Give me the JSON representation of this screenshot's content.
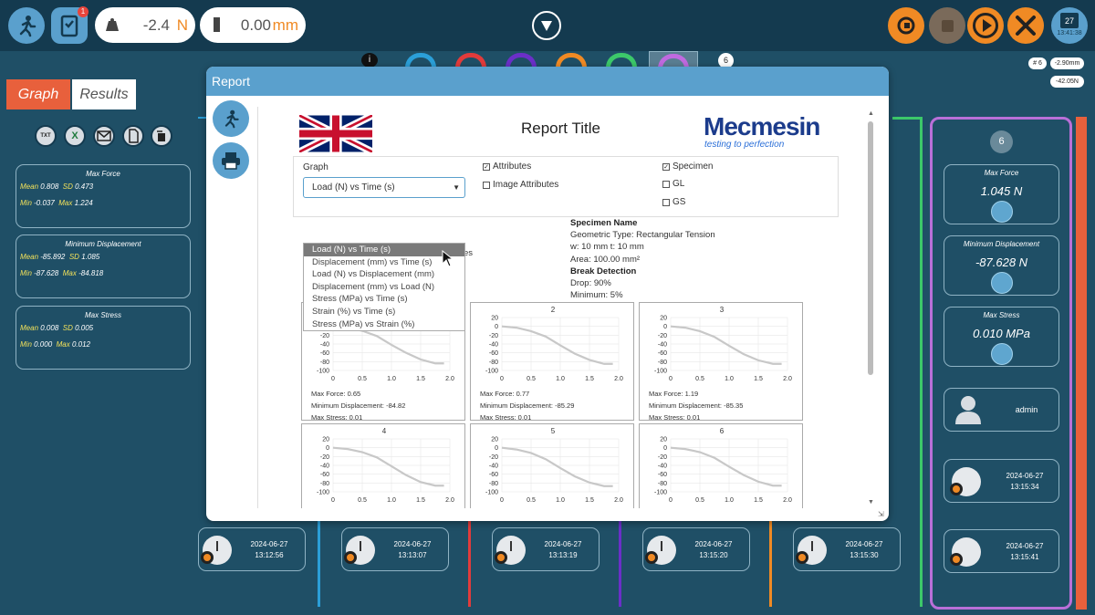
{
  "topbar": {
    "load_value": "-2.4",
    "load_unit": "N",
    "disp_value": "0.00",
    "disp_unit": "mm",
    "badge_count": "1",
    "date_day": "27",
    "time": "13:41:38"
  },
  "info_strip": {
    "sample_count": "6",
    "hash": "# 6",
    "disp": "-2.90mm",
    "force": "-42.05N"
  },
  "tabs": [
    {
      "label": "Graph"
    },
    {
      "label": "Results"
    }
  ],
  "stats": [
    {
      "title": "Max Force",
      "mean": "0.808",
      "sd": "0.473",
      "min": "-0.037",
      "max": "1.224"
    },
    {
      "title": "Minimum Displacement",
      "mean": "-85.892",
      "sd": "1.085",
      "min": "-87.628",
      "max": "-84.818"
    },
    {
      "title": "Max Stress",
      "mean": "0.008",
      "sd": "0.005",
      "min": "0.000",
      "max": "0.012"
    }
  ],
  "stat_keys": {
    "mean": "Mean",
    "sd": "SD",
    "min": "Min",
    "max": "Max"
  },
  "history": [
    {
      "date": "2024-06-27",
      "time": "13:12:56"
    },
    {
      "date": "2024-06-27",
      "time": "13:13:07"
    },
    {
      "date": "2024-06-27",
      "time": "13:13:19"
    },
    {
      "date": "2024-06-27",
      "time": "13:15:20"
    },
    {
      "date": "2024-06-27",
      "time": "13:15:30"
    },
    {
      "date": "2024-06-27",
      "time": "13:15:41"
    }
  ],
  "right_panel": {
    "number": "6",
    "cards": [
      {
        "title": "Max Force",
        "value": "1.045 N"
      },
      {
        "title": "Minimum Displacement",
        "value": "-87.628 N"
      },
      {
        "title": "Max Stress",
        "value": "0.010 MPa"
      }
    ],
    "user": "admin",
    "last_date": "2024-06-27",
    "last_time": "13:15:34"
  },
  "dialog": {
    "title": "Report",
    "report_title": "Report Title",
    "logo_main": "Mecmesin",
    "logo_tag": "testing to perfection",
    "graph_label": "Graph",
    "selected_graph": "Load (N) vs Time (s)",
    "attributes_label": "Attributes",
    "image_attributes_label": "Image Attributes",
    "specimen_label": "Specimen",
    "gl_label": "GL",
    "gs_label": "GS",
    "partial_text": "es",
    "graph_options": [
      "Load (N) vs Time (s)",
      "Displacement (mm) vs Time (s)",
      "Load (N) vs Displacement (mm)",
      "Displacement (mm) vs Load (N)",
      "Stress (MPa) vs Time (s)",
      "Strain (%) vs Time (s)",
      "Stress (MPa) vs Strain (%)"
    ],
    "specimen": {
      "name_label": "Specimen Name",
      "geometric": "Geometric Type: Rectangular Tension",
      "dims": "w: 10 mm t: 10 mm",
      "area": "Area: 100.00 mm²",
      "break_label": "Break Detection",
      "drop": "Drop: 90%",
      "minimum": "Minimum: 5%"
    }
  },
  "chart_data": [
    {
      "type": "line",
      "title": "1",
      "x": [
        0,
        0.25,
        0.5,
        0.75,
        1.0,
        1.25,
        1.5,
        1.75,
        1.9
      ],
      "y": [
        0,
        -3,
        -10,
        -22,
        -42,
        -60,
        -75,
        -84,
        -84
      ],
      "xlim": [
        0,
        2.0
      ],
      "ylim": [
        -100,
        20
      ],
      "xticks": [
        "0",
        "0.5",
        "1.0",
        "1.5",
        "2.0"
      ],
      "yticks": [
        "20",
        "0",
        "-20",
        "-40",
        "-60",
        "-80",
        "-100"
      ],
      "stats": [
        "Max Force: 0.65",
        "Minimum Displacement: -84.82",
        "Max Stress: 0.01"
      ]
    },
    {
      "type": "line",
      "title": "2",
      "x": [
        0,
        0.25,
        0.5,
        0.75,
        1.0,
        1.25,
        1.5,
        1.75,
        1.9
      ],
      "y": [
        0,
        -3,
        -11,
        -23,
        -43,
        -62,
        -76,
        -85,
        -85
      ],
      "xlim": [
        0,
        2.0
      ],
      "ylim": [
        -100,
        20
      ],
      "xticks": [
        "0",
        "0.5",
        "1.0",
        "1.5",
        "2.0"
      ],
      "yticks": [
        "20",
        "0",
        "-20",
        "-40",
        "-60",
        "-80",
        "-100"
      ],
      "stats": [
        "Max Force: 0.77",
        "Minimum Displacement: -85.29",
        "Max Stress: 0.01"
      ]
    },
    {
      "type": "line",
      "title": "3",
      "x": [
        0,
        0.25,
        0.5,
        0.75,
        1.0,
        1.25,
        1.5,
        1.75,
        1.9
      ],
      "y": [
        0,
        -3,
        -11,
        -24,
        -44,
        -63,
        -77,
        -85,
        -85
      ],
      "xlim": [
        0,
        2.0
      ],
      "ylim": [
        -100,
        20
      ],
      "xticks": [
        "0",
        "0.5",
        "1.0",
        "1.5",
        "2.0"
      ],
      "yticks": [
        "20",
        "0",
        "-20",
        "-40",
        "-60",
        "-80",
        "-100"
      ],
      "stats": [
        "Max Force: 1.19",
        "Minimum Displacement: -85.35",
        "Max Stress: 0.01"
      ]
    },
    {
      "type": "line",
      "title": "4",
      "x": [
        0,
        0.25,
        0.5,
        0.75,
        1.0,
        1.25,
        1.5,
        1.75,
        1.9
      ],
      "y": [
        0,
        -3,
        -10,
        -22,
        -42,
        -62,
        -78,
        -86,
        -86
      ],
      "xlim": [
        0,
        2.0
      ],
      "ylim": [
        -100,
        20
      ],
      "xticks": [
        "0",
        "0.5",
        "1.0",
        "1.5",
        "2.0"
      ],
      "yticks": [
        "20",
        "0",
        "-20",
        "-40",
        "-60",
        "-80",
        "-100"
      ],
      "stats": []
    },
    {
      "type": "line",
      "title": "5",
      "x": [
        0,
        0.25,
        0.5,
        0.75,
        1.0,
        1.25,
        1.5,
        1.75,
        1.9
      ],
      "y": [
        0,
        -4,
        -12,
        -26,
        -46,
        -65,
        -79,
        -87,
        -87
      ],
      "xlim": [
        0,
        2.0
      ],
      "ylim": [
        -100,
        20
      ],
      "xticks": [
        "0",
        "0.5",
        "1.0",
        "1.5",
        "2.0"
      ],
      "yticks": [
        "20",
        "0",
        "-20",
        "-40",
        "-60",
        "-80",
        "-100"
      ],
      "stats": []
    },
    {
      "type": "line",
      "title": "6",
      "x": [
        0,
        0.25,
        0.5,
        0.75,
        1.0,
        1.25,
        1.5,
        1.75,
        1.9
      ],
      "y": [
        0,
        -3,
        -10,
        -23,
        -43,
        -62,
        -77,
        -86,
        -86
      ],
      "xlim": [
        0,
        2.0
      ],
      "ylim": [
        -100,
        20
      ],
      "xticks": [
        "0",
        "0.5",
        "1.0",
        "1.5",
        "2.0"
      ],
      "yticks": [
        "20",
        "0",
        "-20",
        "-40",
        "-60",
        "-80",
        "-100"
      ],
      "stats": []
    }
  ],
  "colors": {
    "accent": "#5aa0cd",
    "orange": "#f08a24",
    "dark": "#143a4f",
    "panel": "#1f4f66",
    "purple": "#b96fd8"
  }
}
